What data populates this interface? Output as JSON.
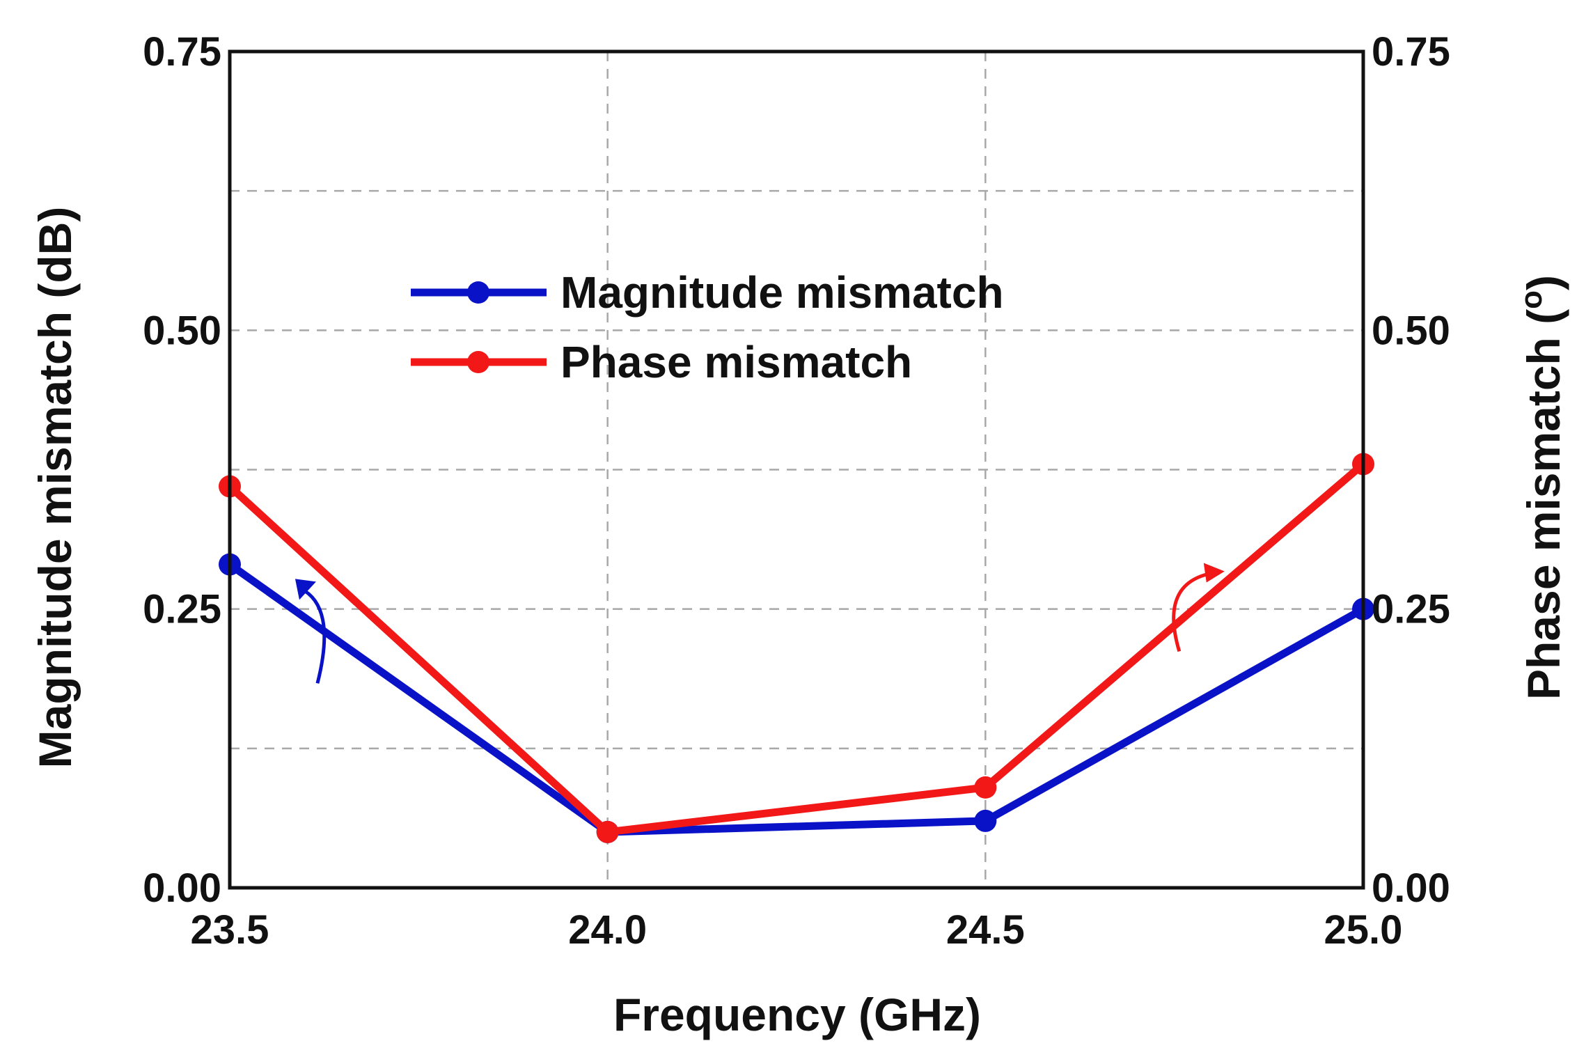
{
  "chart_data": {
    "type": "line",
    "title": "",
    "xlabel": "Frequency (GHz)",
    "ylabel_left": "Magnitude mismatch (dB)",
    "ylabel_right": "Phase mismatch (°)",
    "ylabel_right_parts": {
      "before": "Phase mismatch (",
      "sup": "o",
      "after": ")"
    },
    "x": [
      23.5,
      24.0,
      24.5,
      25.0
    ],
    "x_tick_labels": [
      "23.5",
      "24.0",
      "24.5",
      "25.0"
    ],
    "xlim": [
      23.5,
      25.0
    ],
    "y_left_ticks": [
      "0.00",
      "0.25",
      "0.50",
      "0.75"
    ],
    "y_right_ticks": [
      "0.00",
      "0.25",
      "0.50",
      "0.75"
    ],
    "ylim_left": [
      0,
      0.75
    ],
    "ylim_right": [
      0,
      0.75
    ],
    "grid": true,
    "legend_position": "upper-center",
    "series": [
      {
        "name": "Magnitude mismatch",
        "axis": "left",
        "color": "#0a12c8",
        "values": [
          0.29,
          0.05,
          0.06,
          0.25
        ]
      },
      {
        "name": "Phase mismatch",
        "axis": "right",
        "color": "#f21818",
        "values": [
          0.36,
          0.05,
          0.09,
          0.38
        ]
      }
    ],
    "annotations": [
      {
        "type": "axis-arrow",
        "series": "Magnitude mismatch",
        "points_to": "left-axis"
      },
      {
        "type": "axis-arrow",
        "series": "Phase mismatch",
        "points_to": "right-axis"
      }
    ]
  }
}
